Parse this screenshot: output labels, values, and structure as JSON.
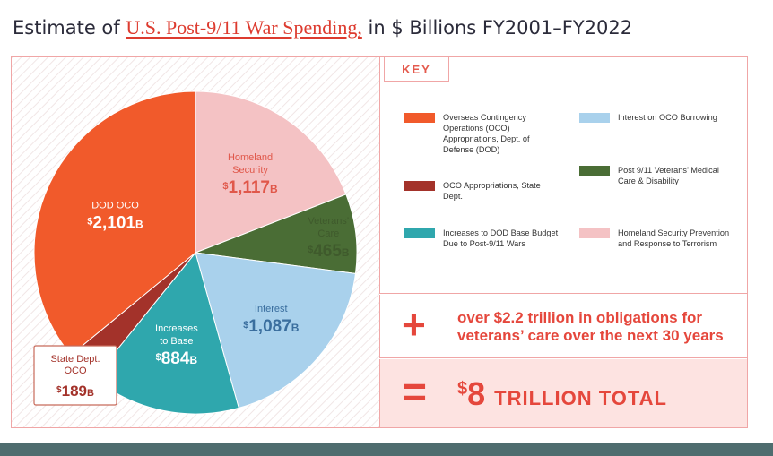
{
  "title": {
    "prefix": "Estimate of",
    "link": "U.S. Post-9/11 War Spending,",
    "suffix": "in $ Billions FY2001–FY2022"
  },
  "key_heading": "KEY",
  "plus_note": "over $2.2 trillion in obligations for veterans’ care over the next 30 years",
  "total": {
    "sign": "$",
    "amount": "8",
    "word": "TRILLION TOTAL"
  },
  "colors": {
    "dod_oco": "#f15a2b",
    "state_dept": "#a3322a",
    "base_budget": "#2fa7ad",
    "interest": "#a9d1ec",
    "veterans": "#4a6d35",
    "homeland": "#f4c2c4",
    "accent": "#e5473c"
  },
  "chart_data": {
    "type": "pie",
    "unit": "$ Billions",
    "slices": [
      {
        "key": "homeland",
        "label": "Homeland Security",
        "value": 1117,
        "display": "1,117",
        "unit_suffix": "B",
        "key_label": "Homeland Security Prevention and Response to Terrorism"
      },
      {
        "key": "veterans",
        "label": "Veterans’ Care",
        "value": 465,
        "display": "465",
        "unit_suffix": "B",
        "key_label": "Post 9/11 Veterans’ Medical Care & Disability"
      },
      {
        "key": "interest",
        "label": "Interest",
        "value": 1087,
        "display": "1,087",
        "unit_suffix": "B",
        "key_label": "Interest on OCO Borrowing"
      },
      {
        "key": "base_budget",
        "label": "Increases to Base",
        "value": 884,
        "display": "884",
        "unit_suffix": "B",
        "key_label": "Increases to DOD Base Budget Due to Post-9/11 Wars"
      },
      {
        "key": "state_dept",
        "label": "State Dept. OCO",
        "value": 189,
        "display": "189",
        "unit_suffix": "B",
        "key_label": "OCO Appropriations, State Dept."
      },
      {
        "key": "dod_oco",
        "label": "DOD OCO",
        "value": 2101,
        "display": "2,101",
        "unit_suffix": "B",
        "key_label": "Overseas Contingency Operations (OCO) Appropriations, Dept. of Defense (DOD)"
      }
    ]
  }
}
